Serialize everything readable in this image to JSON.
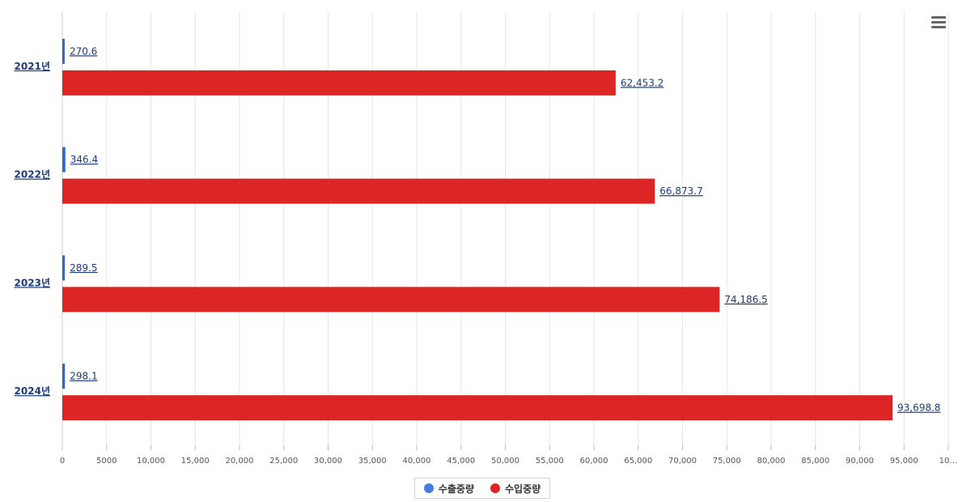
{
  "chart_data": {
    "type": "bar",
    "orientation": "horizontal",
    "categories": [
      "2021년",
      "2022년",
      "2023년",
      "2024년"
    ],
    "series": [
      {
        "name": "수출중량",
        "color": "#3366cc",
        "values": [
          270.6,
          346.4,
          289.5,
          298.1
        ],
        "labels": [
          "270.6",
          "346.4",
          "289.5",
          "298.1"
        ]
      },
      {
        "name": "수입중량",
        "color": "#dc2626",
        "values": [
          62453.2,
          66873.7,
          74186.5,
          93698.8
        ],
        "labels": [
          "62,453.2",
          "66,873.7",
          "74,186.5",
          "93,698.8"
        ]
      }
    ],
    "x_ticks": [
      "0",
      "5000",
      "10,000",
      "15,000",
      "20,000",
      "25,000",
      "30,000",
      "35,000",
      "40,000",
      "45,000",
      "50,000",
      "55,000",
      "60,000",
      "65,000",
      "70,000",
      "75,000",
      "80,000",
      "85,000",
      "90,000",
      "95,000",
      "10…"
    ],
    "xlim": [
      0,
      100000
    ],
    "grid": true,
    "legend_position": "bottom-center"
  },
  "menu_icon": "hamburger-menu-icon"
}
